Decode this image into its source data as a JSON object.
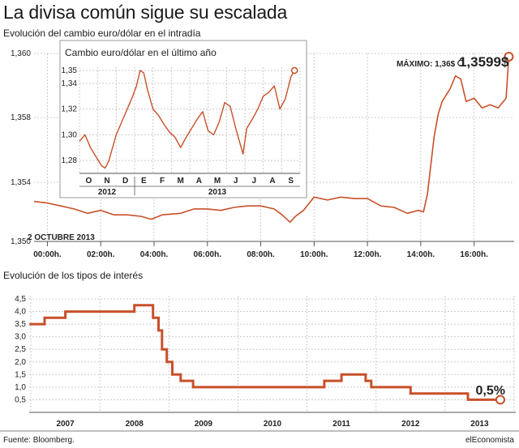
{
  "header": {
    "title": "La divisa común sigue su escalada",
    "subtitle_fx": "Evolución del cambio euro/dólar en el intradía",
    "subtitle_rates": "Evolución de los tipos de interés"
  },
  "footer": {
    "source": "Fuente: Bloomberg.",
    "brand": "elEconomista"
  },
  "colors": {
    "line": "#c8502a",
    "grid": "#cccccc",
    "axis": "#555555",
    "text": "#1a1a1a"
  },
  "chart_data": [
    {
      "type": "line",
      "title": "",
      "date_label": "2 OCTUBRE 2013",
      "ylim": [
        1.35,
        1.36
      ],
      "yticks": [
        "1,350",
        "1,354",
        "1,358",
        "1,360"
      ],
      "xlim": [
        -0.5,
        17.5
      ],
      "xtick_labels": [
        "00:00h.",
        "02:00h.",
        "04:00h.",
        "06:00h.",
        "08:00h.",
        "10:00h.",
        "12:00h.",
        "14:00h.",
        "16:00h."
      ],
      "xtick_hours": [
        0,
        2,
        4,
        6,
        8,
        10,
        12,
        14,
        16
      ],
      "series": [
        {
          "x": [
            -0.5,
            0,
            0.5,
            1,
            1.5,
            2,
            2.5,
            3,
            3.5,
            3.9,
            4.3,
            5,
            5.5,
            6,
            6.5,
            7,
            7.5,
            8,
            8.5,
            8.8,
            9.1,
            9.3,
            9.6,
            10,
            10.5,
            11,
            11.5,
            12,
            12.5,
            13,
            13.5,
            13.9,
            14.1,
            14.25,
            14.5,
            14.65,
            14.8,
            14.95,
            15.1,
            15.3,
            15.5,
            15.7,
            16,
            16.3,
            16.6,
            16.9,
            17.2,
            17.3
          ],
          "y": [
            1.3527,
            1.3526,
            1.3524,
            1.3522,
            1.3519,
            1.3521,
            1.3518,
            1.3518,
            1.3517,
            1.3515,
            1.3518,
            1.3519,
            1.3522,
            1.3522,
            1.3521,
            1.3523,
            1.3524,
            1.3524,
            1.3522,
            1.3518,
            1.3513,
            1.3517,
            1.3521,
            1.353,
            1.3528,
            1.353,
            1.3529,
            1.3529,
            1.3524,
            1.3523,
            1.3519,
            1.3521,
            1.352,
            1.3532,
            1.3568,
            1.3581,
            1.3585,
            1.3587,
            1.3589,
            1.3593,
            1.3592,
            1.3585,
            1.3586,
            1.3583,
            1.3584,
            1.3583,
            1.3586,
            1.3599
          ]
        }
      ],
      "annotations": {
        "max_label": "MÁXIMO: 1,36$",
        "max_x": 15.5,
        "max_y": 1.3597,
        "last_label": "1,3599$",
        "last_x": 17.3,
        "last_y": 1.3599
      }
    },
    {
      "type": "line",
      "title": "Cambio euro/dólar en el último año",
      "ylim": [
        1.27,
        1.355
      ],
      "yticks": [
        "1,28",
        "1,30",
        "1,32",
        "1,34",
        "1,35"
      ],
      "yticks_values": [
        1.28,
        1.3,
        1.32,
        1.34,
        1.35
      ],
      "xtick_labels": [
        "O",
        "N",
        "D",
        "E",
        "F",
        "M",
        "A",
        "M",
        "J",
        "J",
        "A",
        "S"
      ],
      "group_labels": [
        "2012",
        "2013"
      ],
      "series": [
        {
          "x": [
            0,
            0.3,
            0.6,
            0.9,
            1.2,
            1.4,
            1.6,
            2.0,
            2.3,
            2.6,
            2.9,
            3.1,
            3.3,
            3.5,
            3.7,
            4.0,
            4.3,
            4.6,
            4.9,
            5.2,
            5.5,
            5.8,
            6.1,
            6.4,
            6.7,
            7.0,
            7.3,
            7.6,
            7.9,
            8.2,
            8.5,
            8.7,
            8.9,
            9.1,
            9.4,
            9.7,
            10.0,
            10.3,
            10.6,
            10.9,
            11.2,
            11.5,
            11.7
          ],
          "y": [
            1.295,
            1.3,
            1.29,
            1.283,
            1.276,
            1.274,
            1.28,
            1.3,
            1.31,
            1.32,
            1.33,
            1.338,
            1.35,
            1.348,
            1.335,
            1.32,
            1.315,
            1.308,
            1.302,
            1.298,
            1.29,
            1.298,
            1.305,
            1.312,
            1.318,
            1.303,
            1.3,
            1.31,
            1.325,
            1.322,
            1.305,
            1.295,
            1.285,
            1.305,
            1.312,
            1.32,
            1.33,
            1.333,
            1.338,
            1.32,
            1.328,
            1.345,
            1.35
          ]
        }
      ]
    },
    {
      "type": "line",
      "title": "",
      "ylim": [
        0,
        4.5
      ],
      "yticks": [
        "0,5",
        "1,0",
        "1,5",
        "2,0",
        "2,5",
        "3,0",
        "3,5",
        "4,0",
        "4,5"
      ],
      "yticks_values": [
        0.5,
        1,
        1.5,
        2,
        2.5,
        3,
        3.5,
        4,
        4.5
      ],
      "xtick_labels": [
        "2007",
        "2008",
        "2009",
        "2010",
        "2011",
        "2012",
        "2013"
      ],
      "steps": [
        [
          2007.0,
          3.5
        ],
        [
          2007.2,
          3.75
        ],
        [
          2007.5,
          4.0
        ],
        [
          2008.5,
          4.25
        ],
        [
          2008.77,
          3.75
        ],
        [
          2008.85,
          3.25
        ],
        [
          2008.9,
          2.5
        ],
        [
          2008.97,
          2.0
        ],
        [
          2009.05,
          1.5
        ],
        [
          2009.17,
          1.25
        ],
        [
          2009.35,
          1.0
        ],
        [
          2011.25,
          1.25
        ],
        [
          2011.5,
          1.5
        ],
        [
          2011.85,
          1.25
        ],
        [
          2011.93,
          1.0
        ],
        [
          2012.5,
          0.75
        ],
        [
          2013.33,
          0.5
        ],
        [
          2013.8,
          0.5
        ]
      ],
      "annotations": {
        "last_label": "0,5%",
        "last_x": 2013.8,
        "last_y": 0.5
      }
    }
  ]
}
